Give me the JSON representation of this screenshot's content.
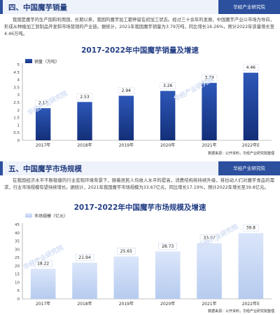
{
  "sections": [
    {
      "heading": "四、中国魔芋销量",
      "brand": "华经产业研究院",
      "paragraph": "我国是魔芋的生产国和利用国，长期以来，我国的魔芋加工都停留在初加工状态。经过三十余年的发展，中国魔芋产业以市场为导向，形成从种植加工到制品开发和市场营销的产业链。据统计，2021年我国魔芋销量为3.79万吨，同比增长16.26%，预计2022年该量增长至4.46万吨。",
      "chart_title": "2017-2022年中国魔芋销量及增速",
      "source": "数据来源：公开资料，华经产业研究院整理",
      "watermark": "华经产业研究院"
    },
    {
      "heading": "五、中国魔芋市场规模",
      "brand": "华经产业研究院",
      "paragraph": "在我国经济水平不断稳健的行业宏观环境背景下，随着居民人均收入水平的提高，消费结构将持续升级，将拉动人们对魔芋食品的需求，行业市场规模有望持续增长。据统计，2021年我国魔芋市场规模为33.67亿元，同比增长17.19%，预计2022年增长至39.8亿元。",
      "chart_title": "2017-2022年中国魔芋市场规模及增速",
      "source": "数据来源：公开资料，华经产业研究院整理",
      "watermark": "华经产业研究院"
    }
  ],
  "chart_data": [
    {
      "type": "bar",
      "title": "2017-2022年中国魔芋销量及增速",
      "categories": [
        "2017年",
        "2018年",
        "2019年",
        "2020年",
        "2021年",
        "2022年E"
      ],
      "series": [
        {
          "name": "销量（万吨）",
          "values": [
            2.12,
            2.53,
            2.94,
            3.26,
            3.79,
            4.46
          ]
        }
      ],
      "value_labels": [
        "2.12",
        "2.53",
        "2.94",
        "3.26",
        "3.79",
        "4.46"
      ],
      "yticks": [
        "0",
        "0.5",
        "1",
        "1.5",
        "2",
        "2.5",
        "3",
        "3.5",
        "4",
        "4.5",
        "5"
      ],
      "ylim": [
        0,
        5
      ],
      "legend": "top-left",
      "colors": {
        "bar_start": "#2d57b8",
        "bar_end": "#132f78",
        "accent": "#2c4f9e"
      }
    },
    {
      "type": "bar",
      "title": "2017-2022年中国魔芋市场规模及增速",
      "categories": [
        "2017年",
        "2018年",
        "2019年",
        "2020年",
        "2021年",
        "2022年E"
      ],
      "series": [
        {
          "name": "市场规模（亿元）",
          "values": [
            18.22,
            21.94,
            25.65,
            28.73,
            33.67,
            39.8
          ]
        }
      ],
      "value_labels": [
        "18.22",
        "21.94",
        "25.65",
        "28.73",
        "33.67",
        "39.8"
      ],
      "yticks": [
        "0",
        "5",
        "10",
        "15",
        "20",
        "25",
        "30",
        "35",
        "40",
        "45"
      ],
      "ylim": [
        0,
        45
      ],
      "legend": "top-left",
      "colors": {
        "bar_start": "#dbe6fa",
        "bar_end": "#b6cbef",
        "accent": "#2c4f9e"
      }
    }
  ]
}
